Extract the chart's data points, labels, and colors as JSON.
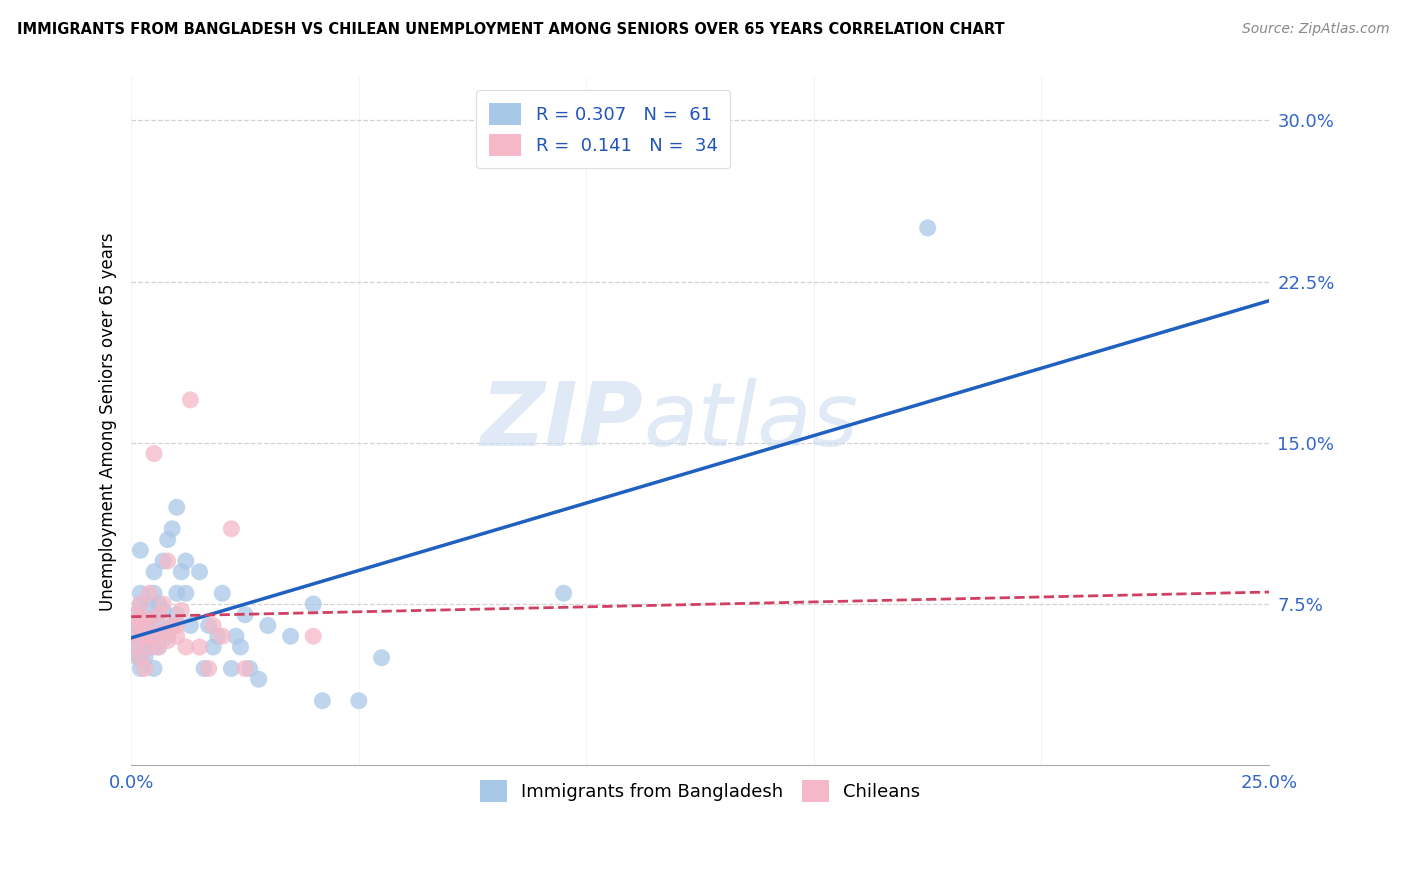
{
  "title": "IMMIGRANTS FROM BANGLADESH VS CHILEAN UNEMPLOYMENT AMONG SENIORS OVER 65 YEARS CORRELATION CHART",
  "source": "Source: ZipAtlas.com",
  "ylabel": "Unemployment Among Seniors over 65 years",
  "xlim": [
    0.0,
    0.25
  ],
  "ylim": [
    0.0,
    0.32
  ],
  "xtick_vals": [
    0.0,
    0.05,
    0.1,
    0.15,
    0.2,
    0.25
  ],
  "xtick_labels": [
    "0.0%",
    "",
    "",
    "",
    "",
    "25.0%"
  ],
  "ytick_vals": [
    0.075,
    0.15,
    0.225,
    0.3
  ],
  "ytick_labels": [
    "7.5%",
    "15.0%",
    "22.5%",
    "30.0%"
  ],
  "color_blue": "#a8c8e8",
  "color_pink": "#f4b8c8",
  "line_blue": "#2060c0",
  "line_pink": "#d04060",
  "watermark_zip": "ZIP",
  "watermark_atlas": "atlas",
  "blue_x": [
    0.001,
    0.001,
    0.001,
    0.001,
    0.0015,
    0.002,
    0.002,
    0.002,
    0.002,
    0.002,
    0.002,
    0.003,
    0.003,
    0.003,
    0.003,
    0.004,
    0.004,
    0.004,
    0.004,
    0.005,
    0.005,
    0.005,
    0.005,
    0.005,
    0.006,
    0.006,
    0.006,
    0.007,
    0.007,
    0.007,
    0.008,
    0.008,
    0.009,
    0.009,
    0.01,
    0.01,
    0.01,
    0.011,
    0.012,
    0.012,
    0.013,
    0.015,
    0.016,
    0.017,
    0.018,
    0.019,
    0.02,
    0.022,
    0.023,
    0.024,
    0.025,
    0.026,
    0.028,
    0.03,
    0.035,
    0.04,
    0.042,
    0.05,
    0.055,
    0.095,
    0.175
  ],
  "blue_y": [
    0.055,
    0.06,
    0.065,
    0.07,
    0.05,
    0.045,
    0.05,
    0.06,
    0.075,
    0.08,
    0.1,
    0.05,
    0.055,
    0.058,
    0.065,
    0.055,
    0.06,
    0.068,
    0.075,
    0.045,
    0.055,
    0.06,
    0.08,
    0.09,
    0.055,
    0.065,
    0.075,
    0.062,
    0.072,
    0.095,
    0.06,
    0.105,
    0.065,
    0.11,
    0.07,
    0.08,
    0.12,
    0.09,
    0.08,
    0.095,
    0.065,
    0.09,
    0.045,
    0.065,
    0.055,
    0.06,
    0.08,
    0.045,
    0.06,
    0.055,
    0.07,
    0.045,
    0.04,
    0.065,
    0.06,
    0.075,
    0.03,
    0.03,
    0.05,
    0.08,
    0.25
  ],
  "pink_x": [
    0.001,
    0.001,
    0.001,
    0.002,
    0.002,
    0.002,
    0.002,
    0.003,
    0.003,
    0.003,
    0.004,
    0.004,
    0.004,
    0.005,
    0.005,
    0.006,
    0.006,
    0.007,
    0.007,
    0.008,
    0.008,
    0.009,
    0.01,
    0.01,
    0.011,
    0.012,
    0.013,
    0.015,
    0.017,
    0.018,
    0.02,
    0.022,
    0.025,
    0.04
  ],
  "pink_y": [
    0.055,
    0.065,
    0.07,
    0.05,
    0.06,
    0.068,
    0.075,
    0.045,
    0.06,
    0.068,
    0.055,
    0.065,
    0.08,
    0.06,
    0.145,
    0.055,
    0.07,
    0.062,
    0.075,
    0.058,
    0.095,
    0.065,
    0.06,
    0.065,
    0.072,
    0.055,
    0.17,
    0.055,
    0.045,
    0.065,
    0.06,
    0.11,
    0.045,
    0.06
  ]
}
